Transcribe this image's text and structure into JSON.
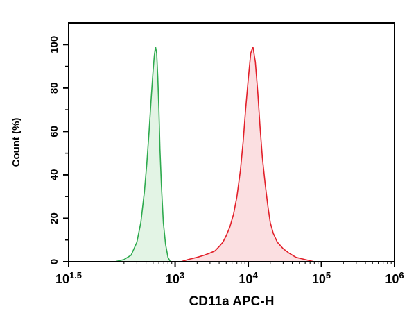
{
  "chart_data": {
    "type": "area",
    "title": "",
    "xlabel": "CD11a APC-H",
    "ylabel": "Count (%)",
    "x_scale": "log10",
    "xlim": [
      35,
      1000000
    ],
    "ylim": [
      0,
      110
    ],
    "x_ticks": [
      {
        "value": 31.6,
        "base": "10",
        "exp": "1.5"
      },
      {
        "value": 1000,
        "base": "10",
        "exp": "3"
      },
      {
        "value": 10000,
        "base": "10",
        "exp": "4"
      },
      {
        "value": 100000,
        "base": "10",
        "exp": "5"
      },
      {
        "value": 1000000,
        "base": "10",
        "exp": "6"
      }
    ],
    "y_ticks": [
      "0",
      "20",
      "40",
      "60",
      "80",
      "100"
    ],
    "grid": false,
    "legend": "none",
    "series": [
      {
        "color": "#2eaa4e",
        "fill": "#e3f4e5",
        "x": [
          150,
          200,
          250,
          300,
          340,
          380,
          410,
          440,
          470,
          500,
          520,
          540,
          560,
          580,
          600,
          620,
          650,
          690,
          740,
          800,
          860
        ],
        "y": [
          0,
          1,
          3,
          9,
          18,
          32,
          45,
          60,
          75,
          88,
          95,
          99,
          96,
          85,
          70,
          52,
          35,
          18,
          8,
          2,
          0
        ]
      },
      {
        "color": "#e2202a",
        "fill": "#fbdfe1",
        "x": [
          1200,
          1500,
          2000,
          2500,
          3000,
          3500,
          4000,
          4500,
          5000,
          5600,
          6300,
          7000,
          7800,
          8500,
          9200,
          10000,
          10800,
          11600,
          12500,
          13500,
          14500,
          15600,
          17000,
          18500,
          20000,
          22000,
          25000,
          30000,
          36000,
          45000,
          60000,
          80000
        ],
        "y": [
          0,
          1,
          2,
          3,
          4,
          5,
          7,
          9,
          12,
          16,
          22,
          30,
          42,
          55,
          70,
          84,
          96,
          99,
          92,
          78,
          62,
          48,
          36,
          26,
          18,
          13,
          9,
          6,
          4,
          2,
          1,
          0
        ]
      }
    ]
  }
}
